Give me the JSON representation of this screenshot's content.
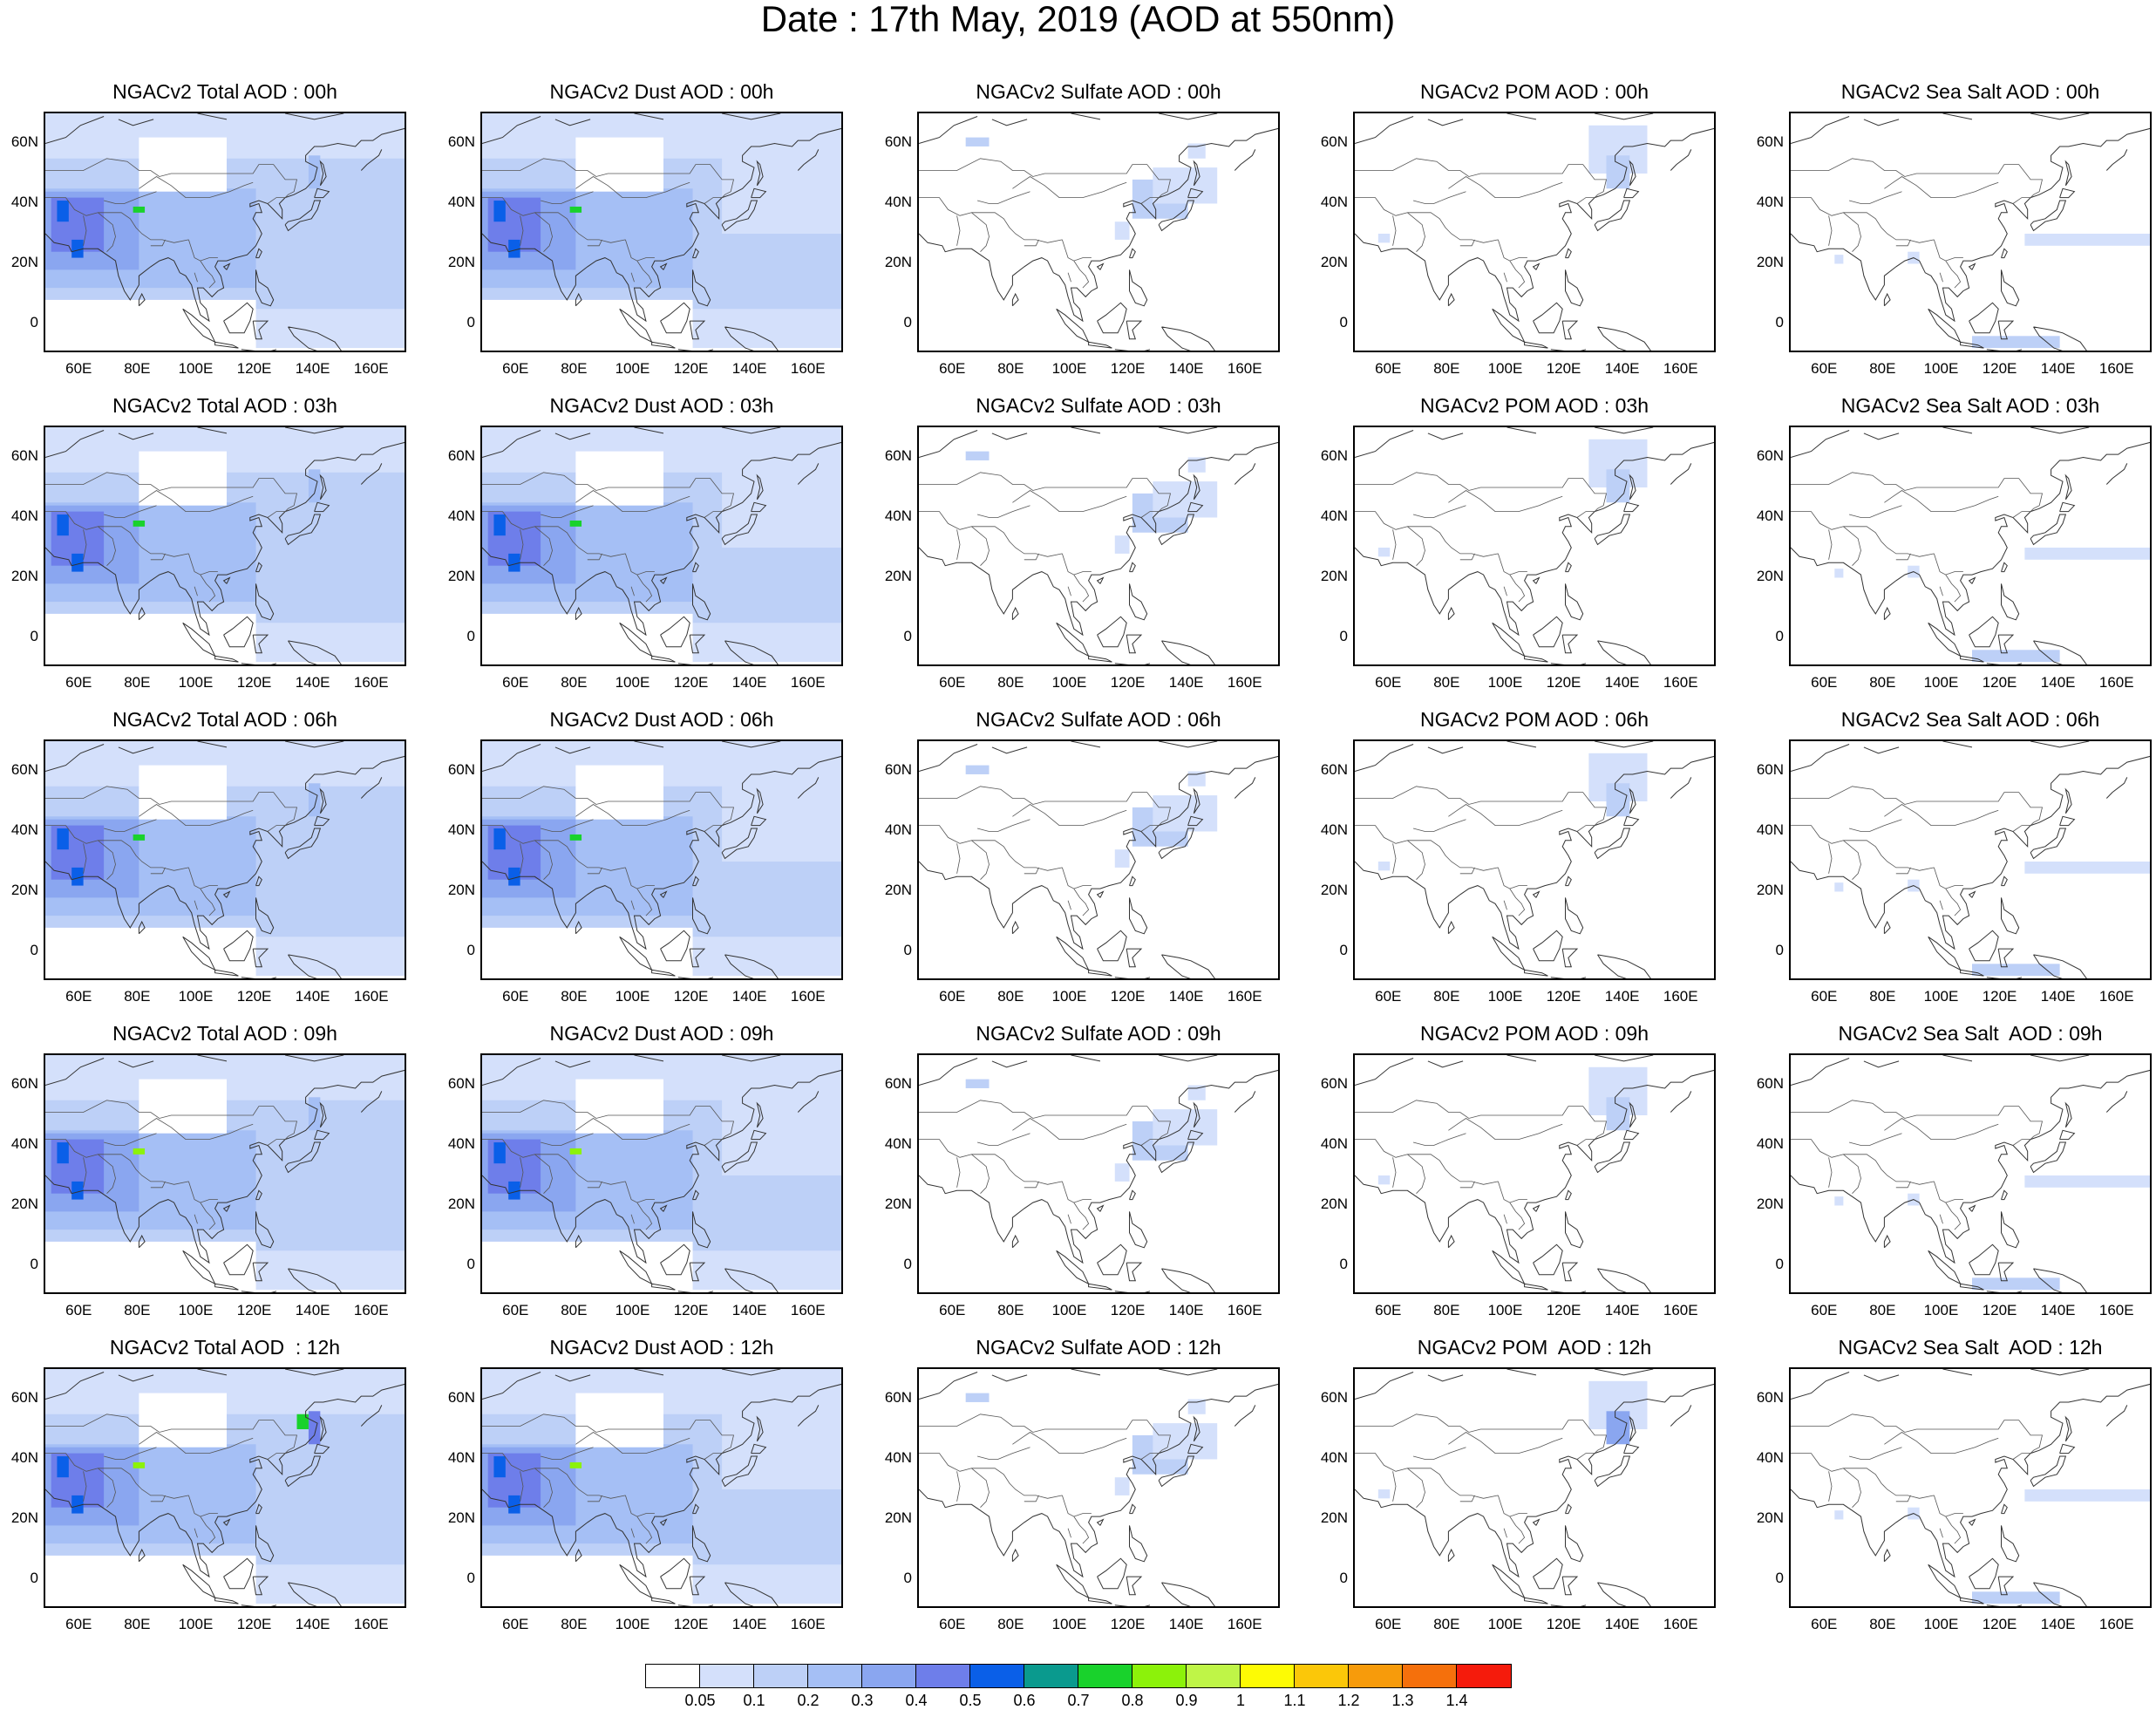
{
  "title": "Date : 17th May, 2019 (AOD at 550nm)",
  "grid": {
    "rows": [
      "00h",
      "03h",
      "06h",
      "09h",
      "12h"
    ],
    "columns": [
      "Total",
      "Dust",
      "Sulfate",
      "POM",
      "Sea Salt"
    ]
  },
  "panels": [
    [
      "NGACv2 Total AOD : 00h",
      "NGACv2 Dust AOD : 00h",
      "NGACv2 Sulfate AOD : 00h",
      "NGACv2 POM AOD : 00h",
      "NGACv2 Sea Salt AOD : 00h"
    ],
    [
      "NGACv2 Total AOD : 03h",
      "NGACv2 Dust AOD : 03h",
      "NGACv2 Sulfate AOD : 03h",
      "NGACv2 POM AOD : 03h",
      "NGACv2 Sea Salt AOD : 03h"
    ],
    [
      "NGACv2 Total AOD : 06h",
      "NGACv2 Dust AOD : 06h",
      "NGACv2 Sulfate AOD : 06h",
      "NGACv2 POM AOD : 06h",
      "NGACv2 Sea Salt AOD : 06h"
    ],
    [
      "NGACv2 Total AOD : 09h",
      "NGACv2 Dust AOD : 09h",
      "NGACv2 Sulfate AOD : 09h",
      "NGACv2 POM AOD : 09h",
      "NGACv2 Sea Salt  AOD : 09h"
    ],
    [
      "NGACv2 Total AOD  : 12h",
      "NGACv2 Dust AOD : 12h",
      "NGACv2 Sulfate AOD : 12h",
      "NGACv2 POM  AOD : 12h",
      "NGACv2 Sea Salt  AOD : 12h"
    ]
  ],
  "lon_ticks": [
    "60E",
    "80E",
    "100E",
    "120E",
    "140E",
    "160E"
  ],
  "lat_ticks": [
    "60N",
    "40N",
    "20N",
    "0"
  ],
  "lon_range": [
    48,
    172
  ],
  "lat_range": [
    -10,
    70
  ],
  "colorbar": {
    "labels": [
      "0.05",
      "0.1",
      "0.2",
      "0.3",
      "0.4",
      "0.5",
      "0.6",
      "0.7",
      "0.8",
      "0.9",
      "1",
      "1.1",
      "1.2",
      "1.3",
      "1.4"
    ],
    "colors": [
      "#ffffff",
      "#d4e0fb",
      "#bdd0f7",
      "#a5bff5",
      "#8aa6f0",
      "#6e7eea",
      "#0a5fe8",
      "#0a9a8e",
      "#19d22c",
      "#8cf20a",
      "#bff547",
      "#fdfb04",
      "#fbc709",
      "#f79b0b",
      "#f5700c",
      "#f51b0c"
    ]
  }
}
